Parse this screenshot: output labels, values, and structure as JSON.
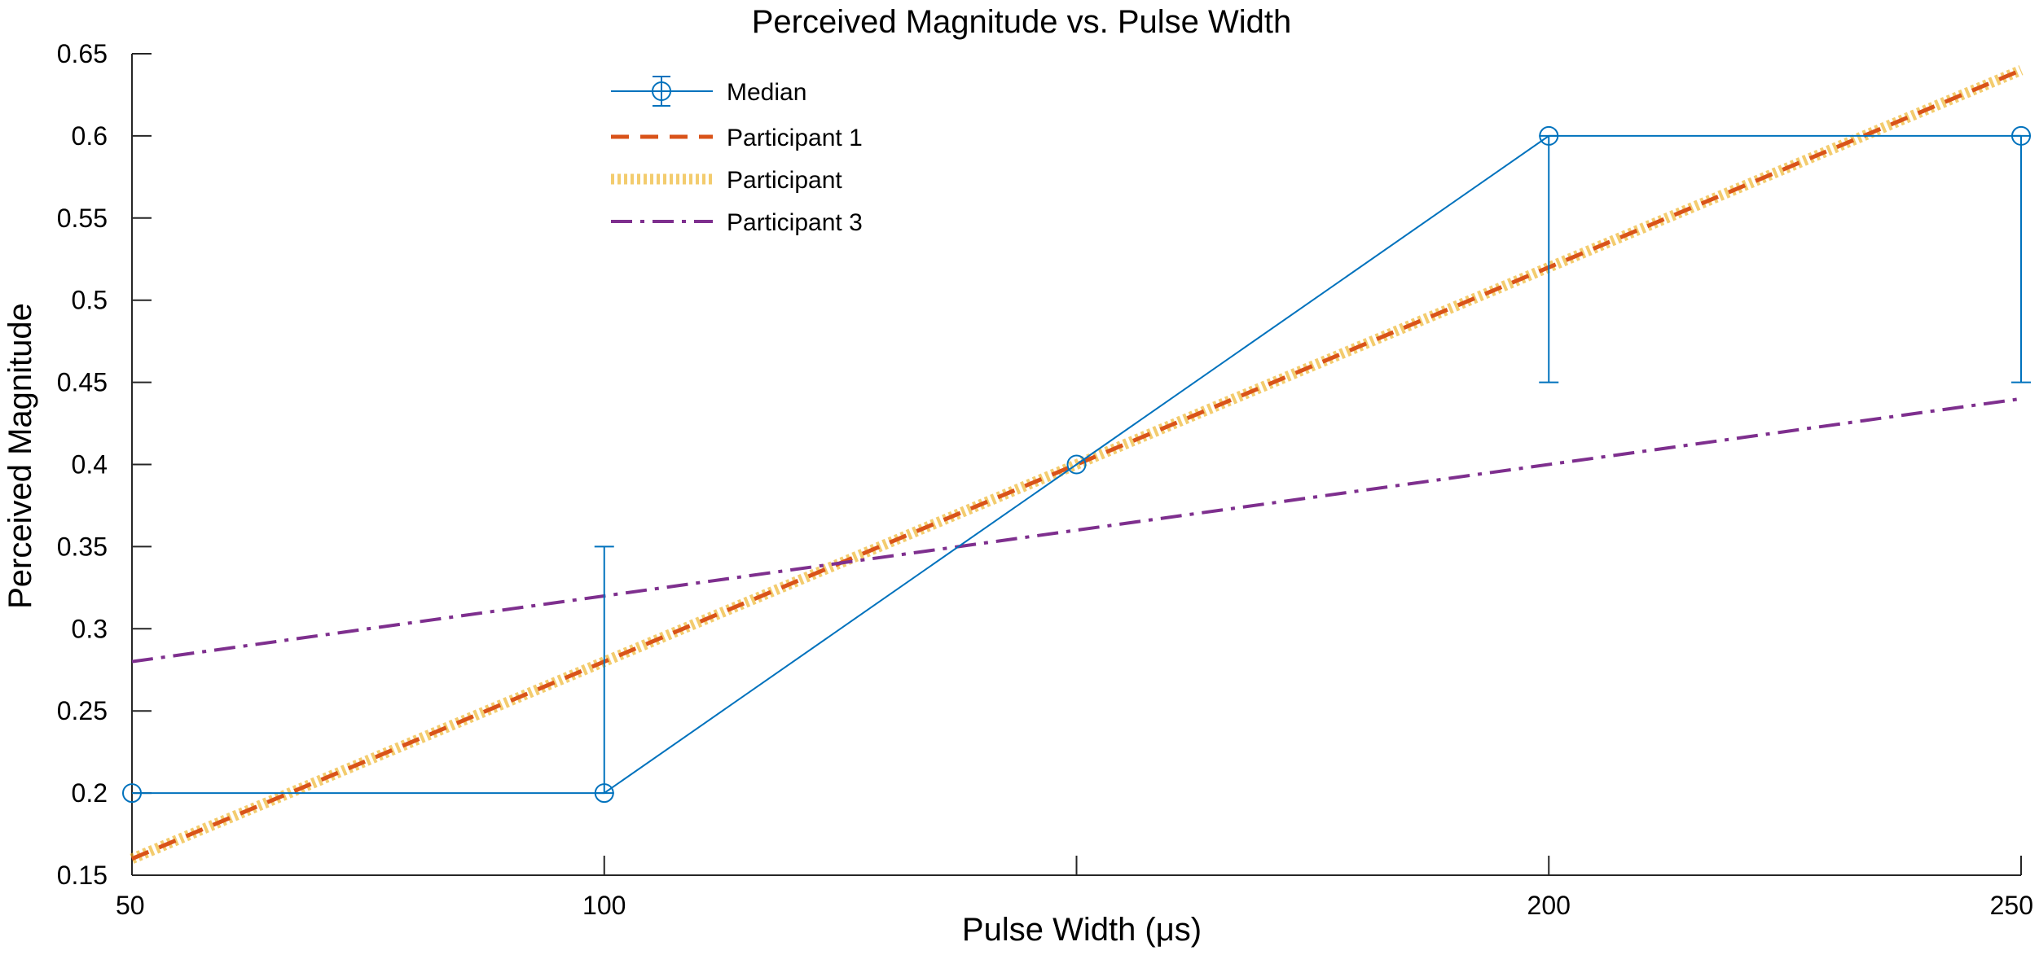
{
  "chart_data": {
    "type": "line",
    "title": "Perceived Magnitude vs. Pulse Width",
    "xlabel": "Pulse Width (μs)",
    "ylabel": "Perceived Magnitude",
    "xlim": [
      50,
      250
    ],
    "ylim": [
      0.15,
      0.65
    ],
    "xticks": [
      50,
      100,
      200,
      250
    ],
    "xtick_labels": [
      "50",
      "100",
      "200",
      "250"
    ],
    "yticks": [
      0.15,
      0.2,
      0.25,
      0.3,
      0.35,
      0.4,
      0.45,
      0.5,
      0.55,
      0.6,
      0.65
    ],
    "ytick_labels": [
      "0.15",
      "0.2",
      "0.25",
      "0.3",
      "0.35",
      "0.4",
      "0.45",
      "0.5",
      "0.55",
      "0.6",
      "0.65"
    ],
    "grid": false,
    "legend_position": "top-left",
    "series": [
      {
        "name": "Median",
        "color": "#0072BD",
        "style": "solid-with-markers",
        "x": [
          50,
          100,
          150,
          200,
          250
        ],
        "y": [
          0.2,
          0.2,
          0.4,
          0.6,
          0.6
        ],
        "error_low": [
          0.2,
          0.2,
          0.4,
          0.45,
          0.45
        ],
        "error_high": [
          0.2,
          0.35,
          0.4,
          0.6,
          0.6
        ]
      },
      {
        "name": "Participant 1",
        "color": "#D95319",
        "style": "dashed",
        "x": [
          50,
          250
        ],
        "y": [
          0.16,
          0.64
        ]
      },
      {
        "name": "Participant",
        "color": "#EDB120",
        "style": "dotted-thick",
        "x": [
          50,
          250
        ],
        "y": [
          0.16,
          0.64
        ]
      },
      {
        "name": "Participant 3",
        "color": "#7E2F8E",
        "style": "dash-dot",
        "x": [
          50,
          250
        ],
        "y": [
          0.28,
          0.44
        ]
      }
    ]
  }
}
